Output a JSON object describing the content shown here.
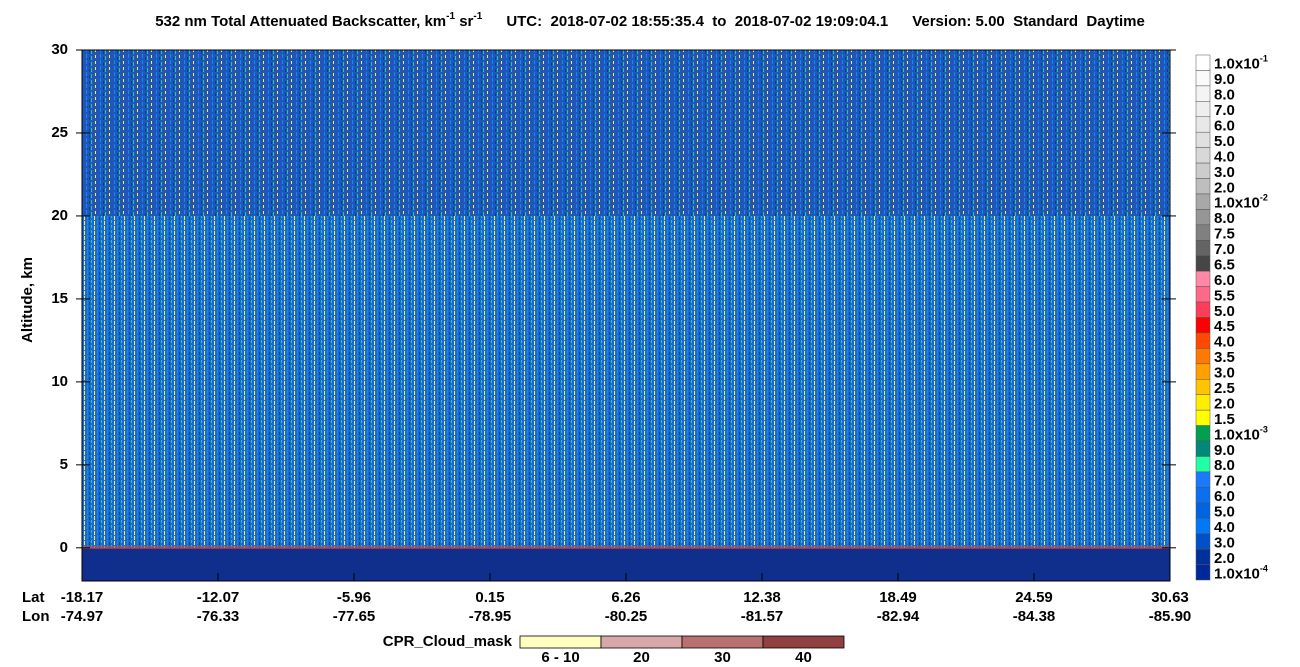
{
  "chart_data": {
    "type": "heatmap",
    "title_parts": [
      {
        "text": "532 nm Total Attenuated Backscatter, km"
      },
      {
        "text": "-1",
        "sup": true
      },
      {
        "text": " sr"
      },
      {
        "text": "-1",
        "sup": true
      }
    ],
    "utc": "UTC:  2018-07-02 18:55:35.4  to  2018-07-02 19:09:04.1",
    "version": "Version: 5.00  Standard  Daytime",
    "ylabel": "Altitude, km",
    "ylim": [
      -2,
      30
    ],
    "yticks": [
      0,
      5,
      10,
      15,
      20,
      25,
      30
    ],
    "lat_header": "Lat",
    "lon_header": "Lon",
    "lat_ticks": [
      -18.17,
      -12.07,
      -5.96,
      0.15,
      6.26,
      12.38,
      18.49,
      24.59,
      30.63
    ],
    "lon_ticks": [
      -74.97,
      -76.33,
      -77.65,
      -78.95,
      -80.25,
      -81.57,
      -82.94,
      -84.38,
      {
        "value": -85.9,
        "label": "-85.90"
      }
    ],
    "colorbar": [
      {
        "value": 0.1,
        "label": "1.0x10",
        "label_exp": "-1",
        "color": "#ffffff"
      },
      {
        "value": 0.09,
        "label": "9.0",
        "color": "#fafafa"
      },
      {
        "value": 0.08,
        "label": "8.0",
        "color": "#f4f4f4"
      },
      {
        "value": 0.07,
        "label": "7.0",
        "color": "#eeeeee"
      },
      {
        "value": 0.06,
        "label": "6.0",
        "color": "#e8e8e8"
      },
      {
        "value": 0.05,
        "label": "5.0",
        "color": "#e0e0e0"
      },
      {
        "value": 0.04,
        "label": "4.0",
        "color": "#d8d8d8"
      },
      {
        "value": 0.03,
        "label": "3.0",
        "color": "#cccccc"
      },
      {
        "value": 0.02,
        "label": "2.0",
        "color": "#bebebe"
      },
      {
        "value": 0.01,
        "label": "1.0x10",
        "label_exp": "-2",
        "color": "#a8a8a8"
      },
      {
        "value": 0.008,
        "label": "8.0",
        "color": "#969696"
      },
      {
        "value": 0.0075,
        "label": "7.5",
        "color": "#808080"
      },
      {
        "value": 0.007,
        "label": "7.0",
        "color": "#646464"
      },
      {
        "value": 0.0065,
        "label": "6.5",
        "color": "#464646"
      },
      {
        "value": 0.006,
        "label": "6.0",
        "color": "#ff88a8"
      },
      {
        "value": 0.0055,
        "label": "5.5",
        "color": "#ff6888"
      },
      {
        "value": 0.005,
        "label": "5.0",
        "color": "#ff3c5a"
      },
      {
        "value": 0.0045,
        "label": "4.5",
        "color": "#ff0000"
      },
      {
        "value": 0.004,
        "label": "4.0",
        "color": "#ff4800"
      },
      {
        "value": 0.0035,
        "label": "3.5",
        "color": "#ff7800"
      },
      {
        "value": 0.003,
        "label": "3.0",
        "color": "#ffa000"
      },
      {
        "value": 0.0025,
        "label": "2.5",
        "color": "#ffc400"
      },
      {
        "value": 0.002,
        "label": "2.0",
        "color": "#ffee00"
      },
      {
        "value": 0.0015,
        "label": "1.5",
        "color": "#ffff00"
      },
      {
        "value": 0.001,
        "label": "1.0x10",
        "label_exp": "-3",
        "color": "#00a050"
      },
      {
        "value": 0.0009,
        "label": "9.0",
        "color": "#008878"
      },
      {
        "value": 0.0008,
        "label": "8.0",
        "color": "#20ffa8"
      },
      {
        "value": 0.0007,
        "label": "7.0",
        "color": "#1a7aff"
      },
      {
        "value": 0.0006,
        "label": "6.0",
        "color": "#0a70f0"
      },
      {
        "value": 0.0005,
        "label": "5.0",
        "color": "#0064e0"
      },
      {
        "value": 0.0004,
        "label": "4.0",
        "color": "#0078f8"
      },
      {
        "value": 0.0003,
        "label": "3.0",
        "color": "#0050c8"
      },
      {
        "value": 0.0002,
        "label": "2.0",
        "color": "#00309c"
      },
      {
        "value": 0.0001,
        "label": "1.0x10",
        "label_exp": "-4",
        "color": "#002898"
      }
    ],
    "cpr_legend": {
      "title": "CPR_Cloud_mask",
      "items": [
        {
          "label": "6 - 10",
          "color": "#ffffc0"
        },
        {
          "label": 20,
          "color": "#d8a8a8"
        },
        {
          "label": 30,
          "color": "#b87070"
        },
        {
          "label": 40,
          "color": "#904040"
        }
      ]
    }
  }
}
